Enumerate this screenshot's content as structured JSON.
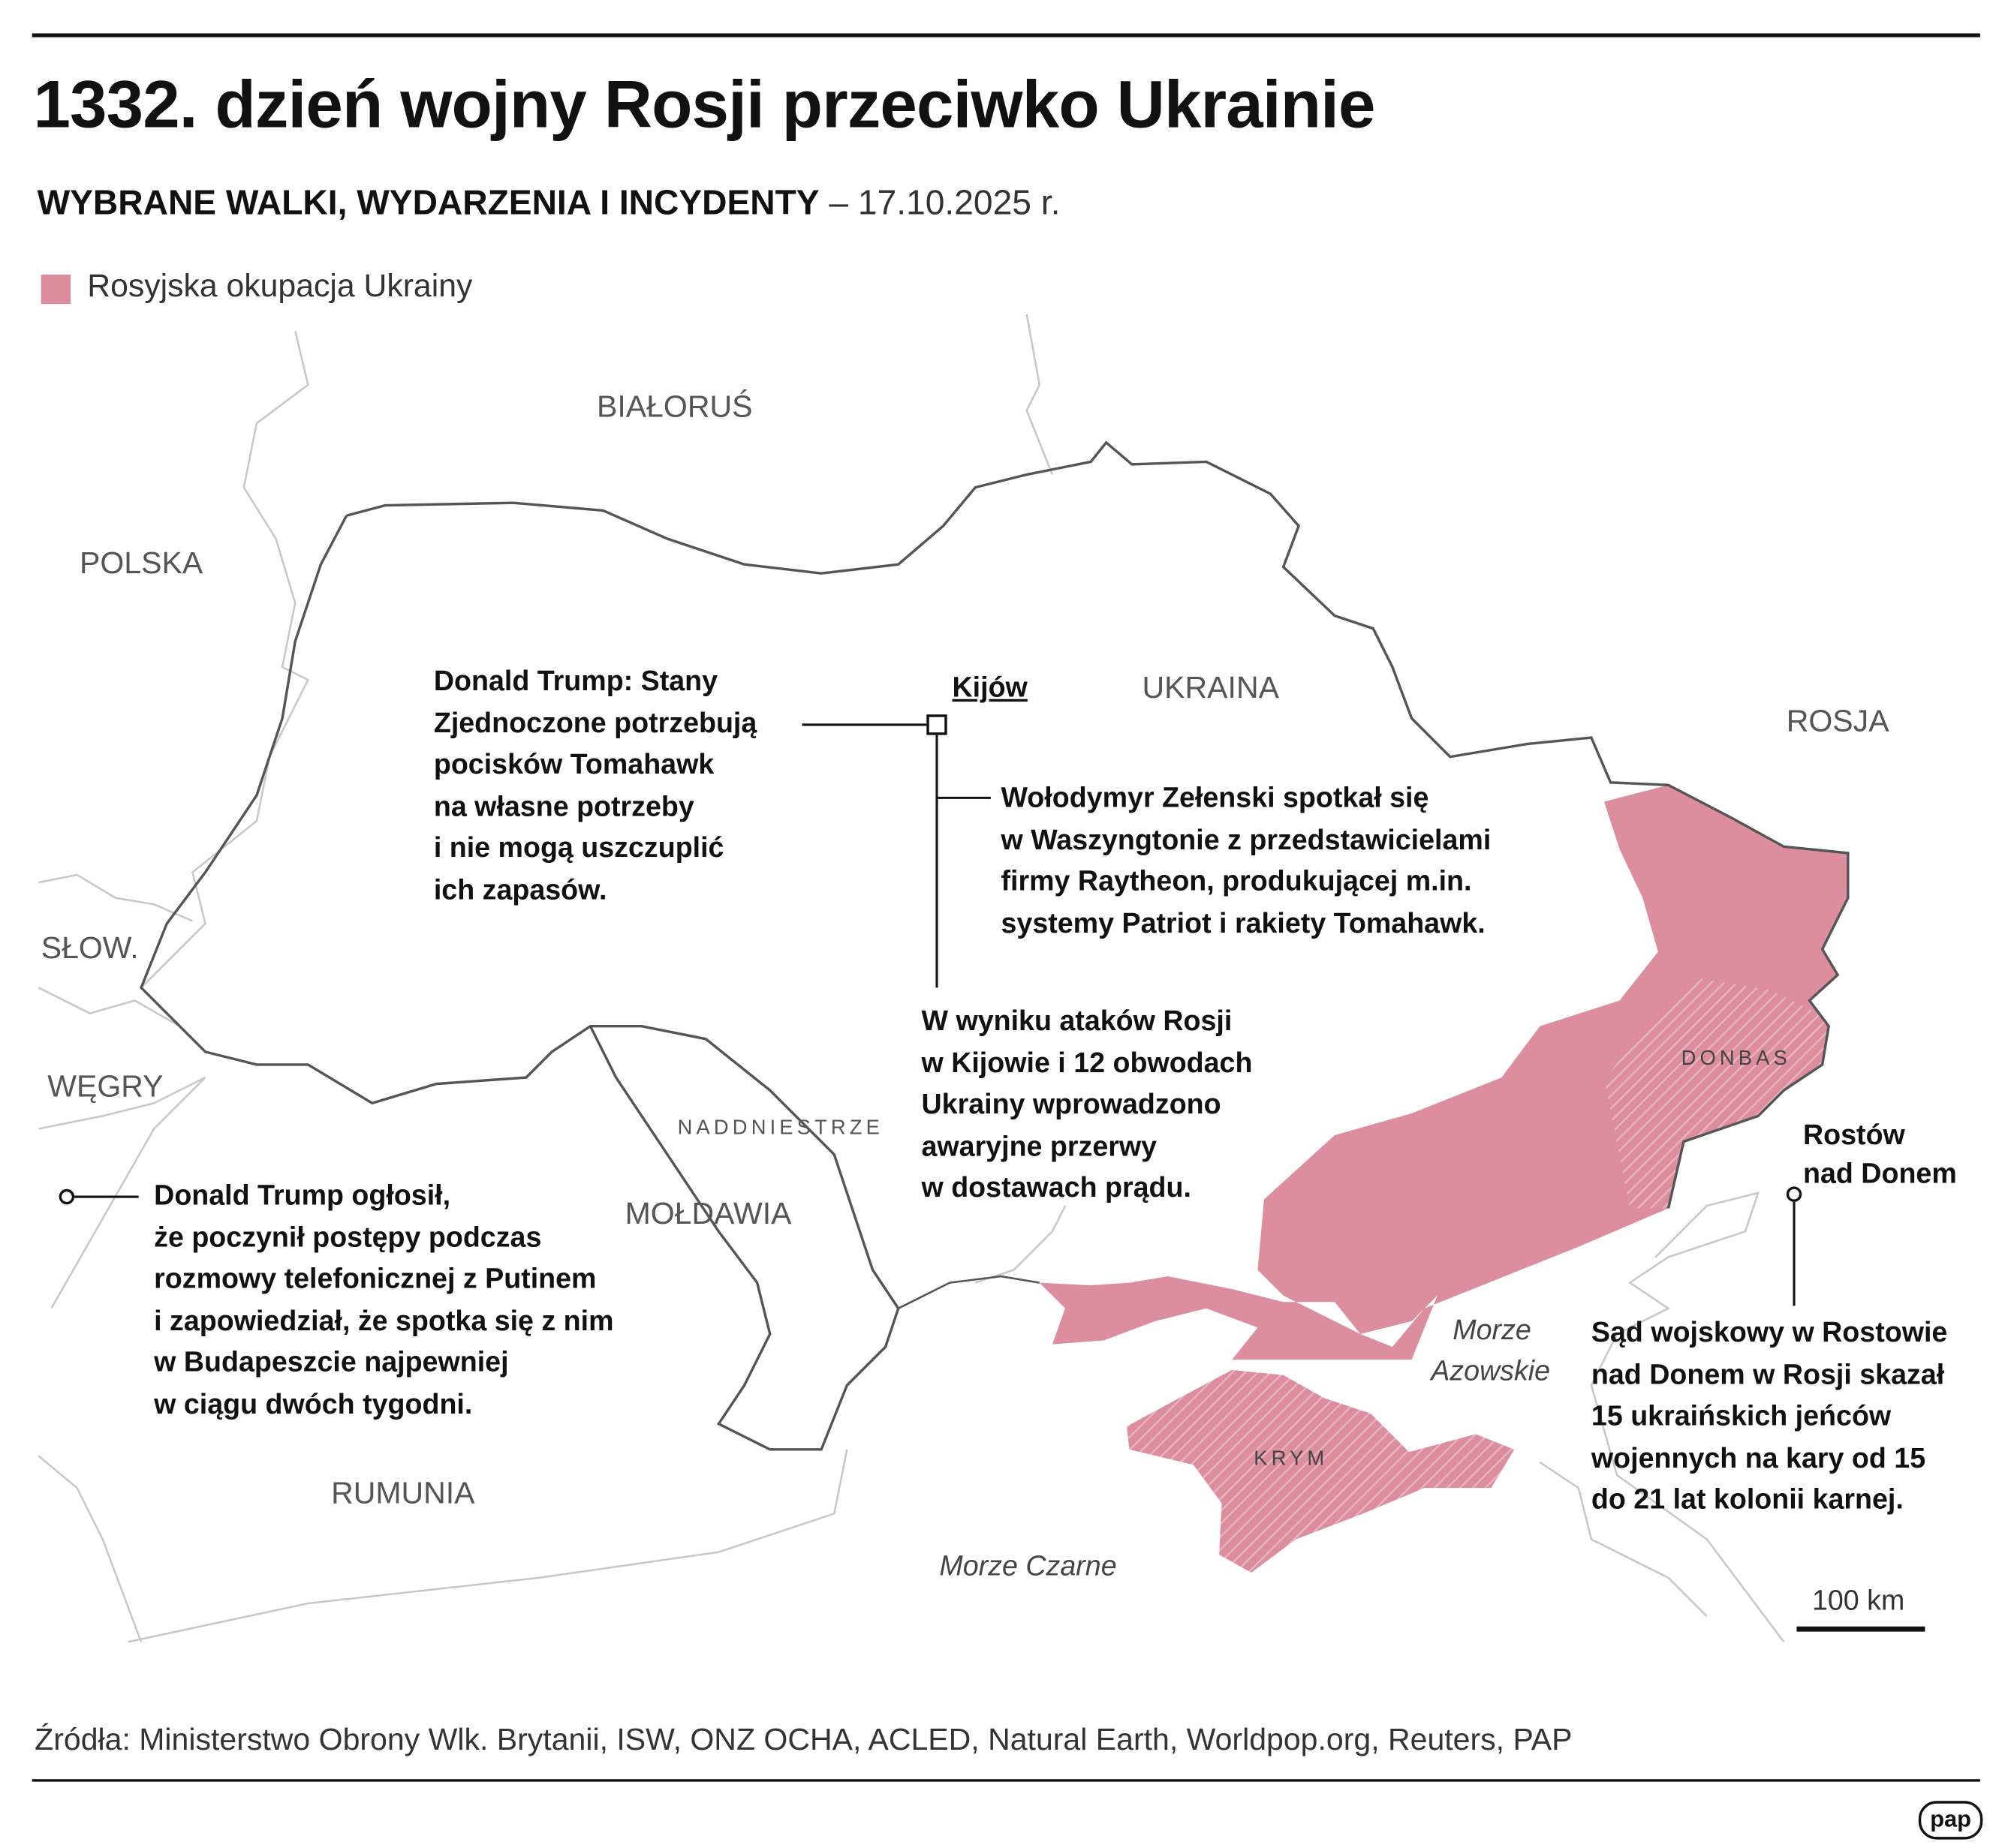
{
  "header": {
    "title": "1332. dzień wojny Rosji przeciwko Ukrainie",
    "subtitle_bold": "WYBRANE WALKI, WYDARZENIA I INCYDENTY",
    "subtitle_date": " – 17.10.2025 r."
  },
  "legend": {
    "label": "Rosyjska okupacja Ukrainy",
    "color": "#dc8e9f"
  },
  "map": {
    "countries": {
      "belarus": "BIAŁORUŚ",
      "poland": "POLSKA",
      "ukraine": "UKRAINA",
      "russia": "ROSJA",
      "slovakia": "SŁOW.",
      "hungary": "WĘGRY",
      "moldova": "MOŁDAWIA",
      "romania": "RUMUNIA"
    },
    "regions": {
      "transnistria": "NADDNIESTRZE",
      "donbas": "DONBAS",
      "crimea": "KRYM"
    },
    "seas": {
      "azov_1": "Morze",
      "azov_2": "Azowskie",
      "black": "Morze Czarne"
    },
    "cities": {
      "kyiv": "Kijów",
      "rostov": "Rostów\nnad Donem"
    },
    "scale_label": "100 km",
    "occupied_color": "#dc8e9f",
    "border_color": "#555555"
  },
  "notes": {
    "trump_tomahawk": "Donald Trump: Stany\nZjednoczone potrzebują\npocisków Tomahawk\nna własne potrzeby\ni nie mogą uszczuplić\nich zapasów.",
    "zelensky": "Wołodymyr Zełenski spotkał się\nw Waszyngtonie z przedstawicielami\nfirmy Raytheon, produkującej m.in.\nsystemy Patriot i rakiety Tomahawk.",
    "blackouts": "W wyniku ataków Rosji\nw Kijowie i 12 obwodach\nUkrainy wprowadzono\nawaryjne przerwy\nw dostawach prądu.",
    "trump_budapest": "Donald Trump ogłosił,\nże poczynił postępy podczas\nrozmowy telefonicznej z Putinem\ni zapowiedział, że spotka się z nim\nw Budapeszcie najpewniej\nw ciągu dwóch tygodni.",
    "rostov_court": "Sąd wojskowy w Rostowie\nnad Donem w Rosji skazał\n15 ukraińskich jeńców\nwojennych na kary od 15\ndo 21 lat kolonii karnej."
  },
  "footer": {
    "sources": "Źródła: Ministerstwo Obrony Wlk. Brytanii, ISW, ONZ OCHA, ACLED, Natural Earth, Worldpop.org, Reuters, PAP",
    "logo": "pap"
  }
}
